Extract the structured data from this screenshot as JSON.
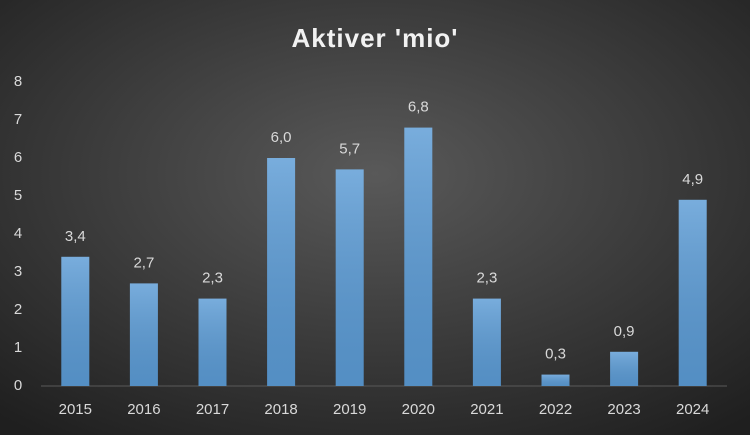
{
  "chart_data": {
    "type": "bar",
    "title": "Aktiver 'mio'",
    "categories": [
      "2015",
      "2016",
      "2017",
      "2018",
      "2019",
      "2020",
      "2021",
      "2022",
      "2023",
      "2024"
    ],
    "values": [
      3.4,
      2.7,
      2.3,
      6.0,
      5.7,
      6.8,
      2.3,
      0.3,
      0.9,
      4.9
    ],
    "value_labels": [
      "3,4",
      "2,7",
      "2,3",
      "6,0",
      "5,7",
      "6,8",
      "2,3",
      "0,3",
      "0,9",
      "4,9"
    ],
    "color": "#5b9bd5",
    "ylim": [
      0,
      8
    ],
    "yticks": [
      0,
      1,
      2,
      3,
      4,
      5,
      6,
      7,
      8
    ],
    "grid": false
  }
}
